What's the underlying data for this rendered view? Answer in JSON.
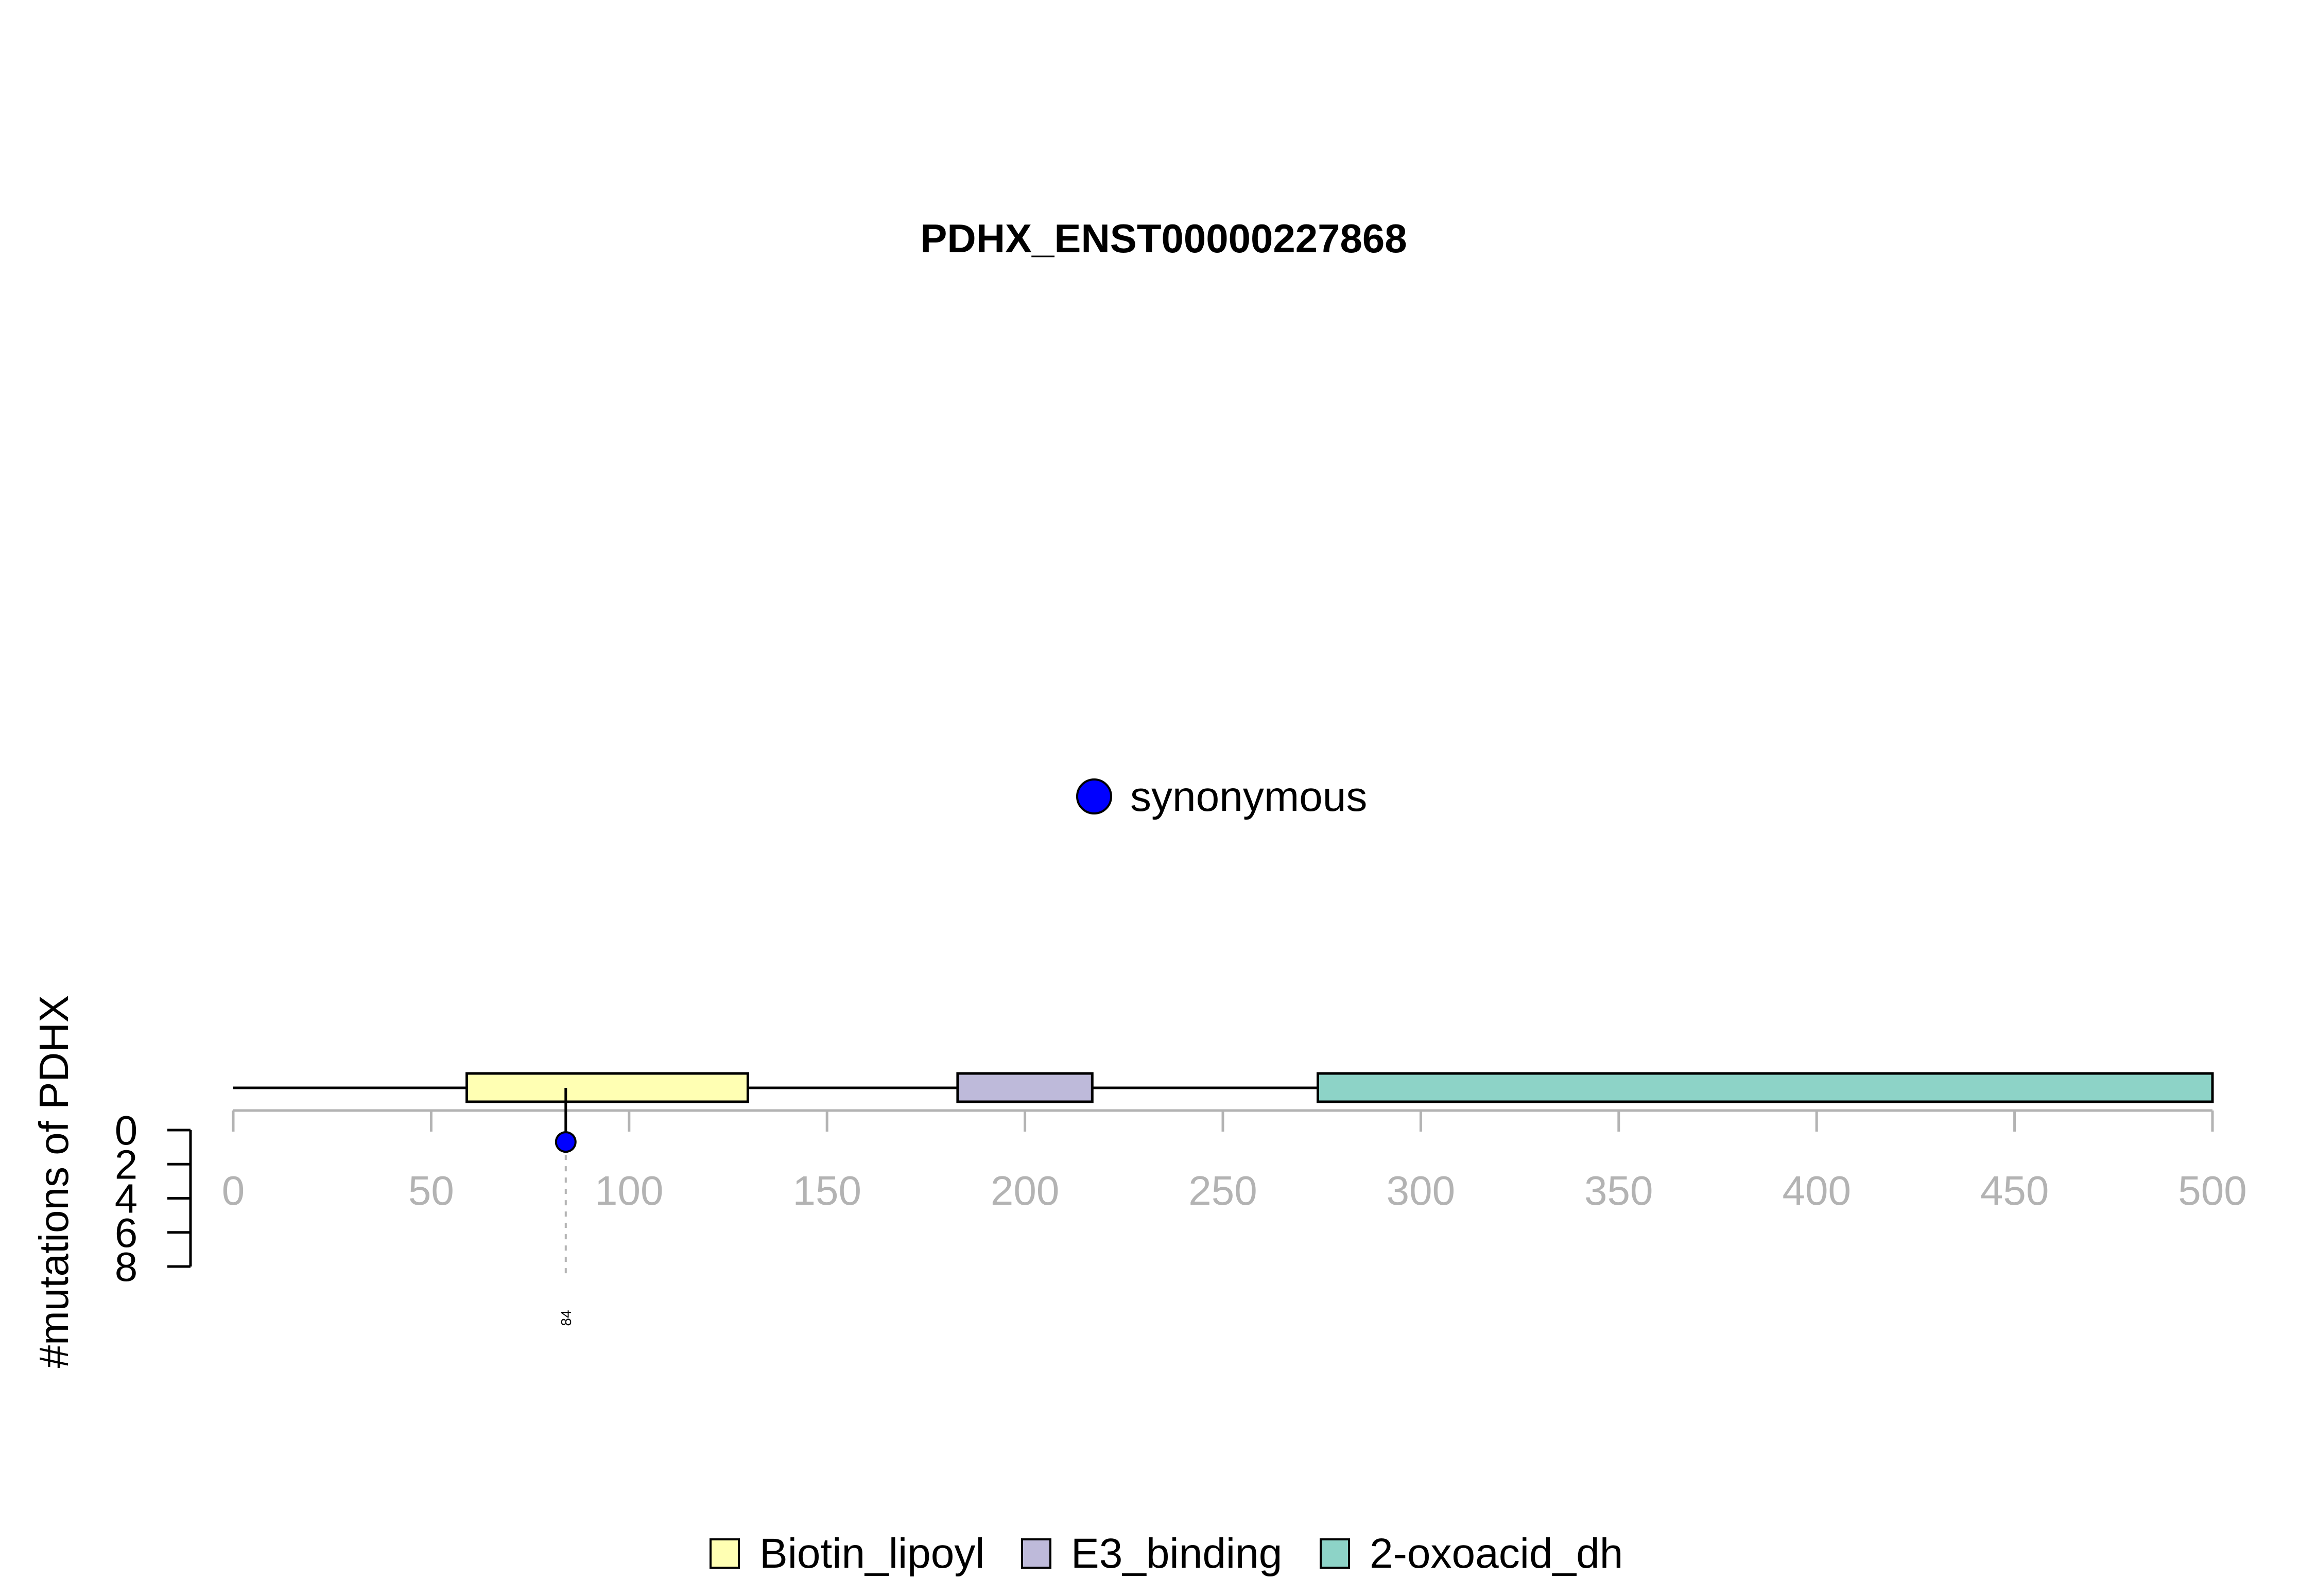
{
  "chart_data": {
    "type": "lollipop",
    "title": "PDHX_ENST00000227868",
    "ylabel": "#mutations of PDHX",
    "protein_length": 500,
    "x_ticks": [
      0,
      50,
      100,
      150,
      200,
      250,
      300,
      350,
      400,
      450,
      500
    ],
    "y_ticks": [
      0,
      2,
      4,
      6,
      8
    ],
    "ylim": [
      0,
      8
    ],
    "domains": [
      {
        "name": "Biotin_lipoyl",
        "start": 59,
        "end": 130,
        "color": "#FFFFB3"
      },
      {
        "name": "E3_binding",
        "start": 183,
        "end": 217,
        "color": "#BEBADA"
      },
      {
        "name": "2-oxoacid_dh",
        "start": 274,
        "end": 500,
        "color": "#8DD3C7"
      }
    ],
    "mutations": [
      {
        "position": 84,
        "label": "84",
        "count": 1,
        "type": "synonymous",
        "color": "#0000FF"
      }
    ],
    "mutation_legend": [
      {
        "label": "synonymous",
        "color": "#0000FF"
      }
    ],
    "domain_legend": [
      {
        "label": "Biotin_lipoyl",
        "color": "#FFFFB3"
      },
      {
        "label": "E3_binding",
        "color": "#BEBADA"
      },
      {
        "label": "2-oxoacid_dh",
        "color": "#8DD3C7"
      }
    ]
  }
}
